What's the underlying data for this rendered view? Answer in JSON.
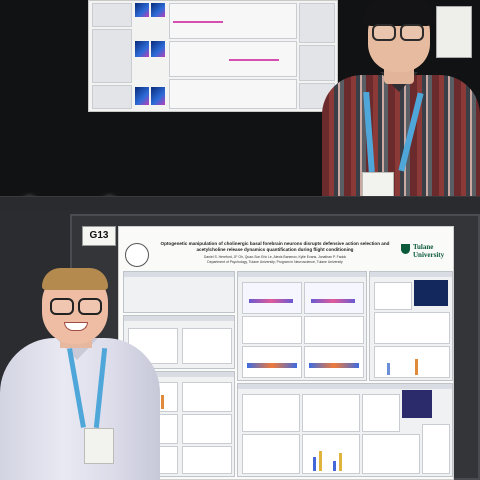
{
  "scene": "Two presenters standing beside academic posters at a poster session",
  "booth_sign": {
    "label": "G13"
  },
  "poster_bottom": {
    "title": "Optogenetic manipulation of cholinergic basal forebrain neurons disrupts defensive action selection and acetylcholine release dynamics quantification during flight conditioning",
    "authors": "Daniel S. Hereford, JF Oh, Quan-Son Eric Le, Alexis Banenov, Kylie Evans, Jonathan P. Fadok",
    "affiliation": "Department of Psychology, Tulane University; Program in Neuroscience, Tulane University",
    "logo_text": "Tulane University"
  },
  "colors": {
    "board": "#111214",
    "poster_bg": "#fafaf8",
    "tulane_green": "#0b5a3a",
    "lanyard": "#4fa7d9",
    "top_shirt_red": "#8b3a38",
    "bottom_shirt": "#e3e3ee"
  }
}
